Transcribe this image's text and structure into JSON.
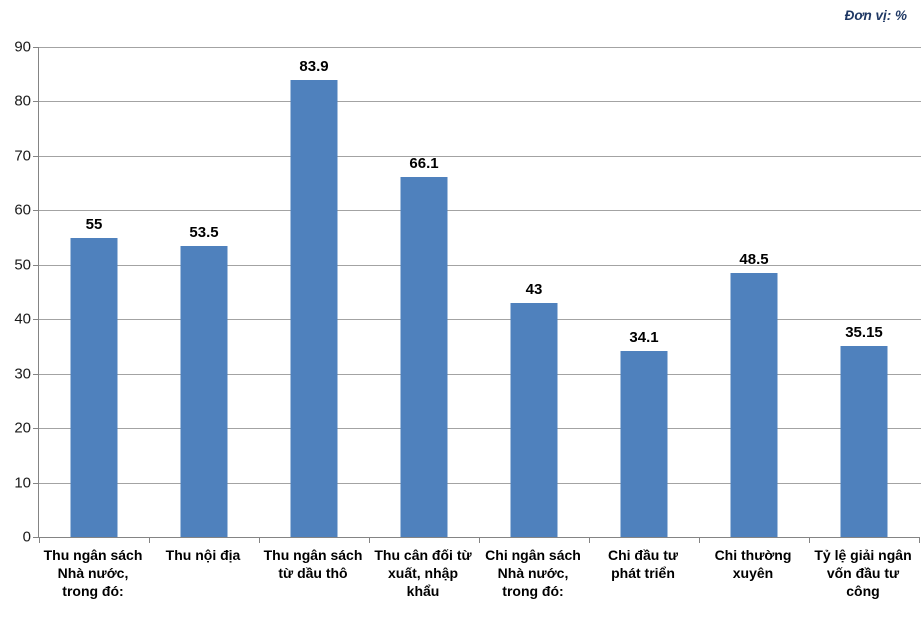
{
  "chart_data": {
    "type": "bar",
    "title": "",
    "xlabel": "",
    "ylabel": "",
    "annotation": "Đơn vị: %",
    "categories": [
      "Thu ngân sách Nhà nước, trong đó:",
      "Thu nội địa",
      "Thu ngân sách từ dầu thô",
      "Thu cân đối từ xuất, nhập khẩu",
      "Chi ngân sách Nhà nước, trong đó:",
      "Chi đầu tư phát triển",
      "Chi thường xuyên",
      "Tỷ lệ giải ngân vốn đầu tư công"
    ],
    "values": [
      55,
      53.5,
      83.9,
      66.1,
      43,
      34.1,
      48.5,
      35.15
    ],
    "ylim": [
      0,
      90
    ],
    "yticks": [
      0,
      10,
      20,
      30,
      40,
      50,
      60,
      70,
      80,
      90
    ],
    "grid": true,
    "legend": false,
    "colors": {
      "bar": "#4F81BD",
      "gridline": "#A3A3A3",
      "axis": "#848484",
      "annotation": "#1F3864"
    }
  }
}
